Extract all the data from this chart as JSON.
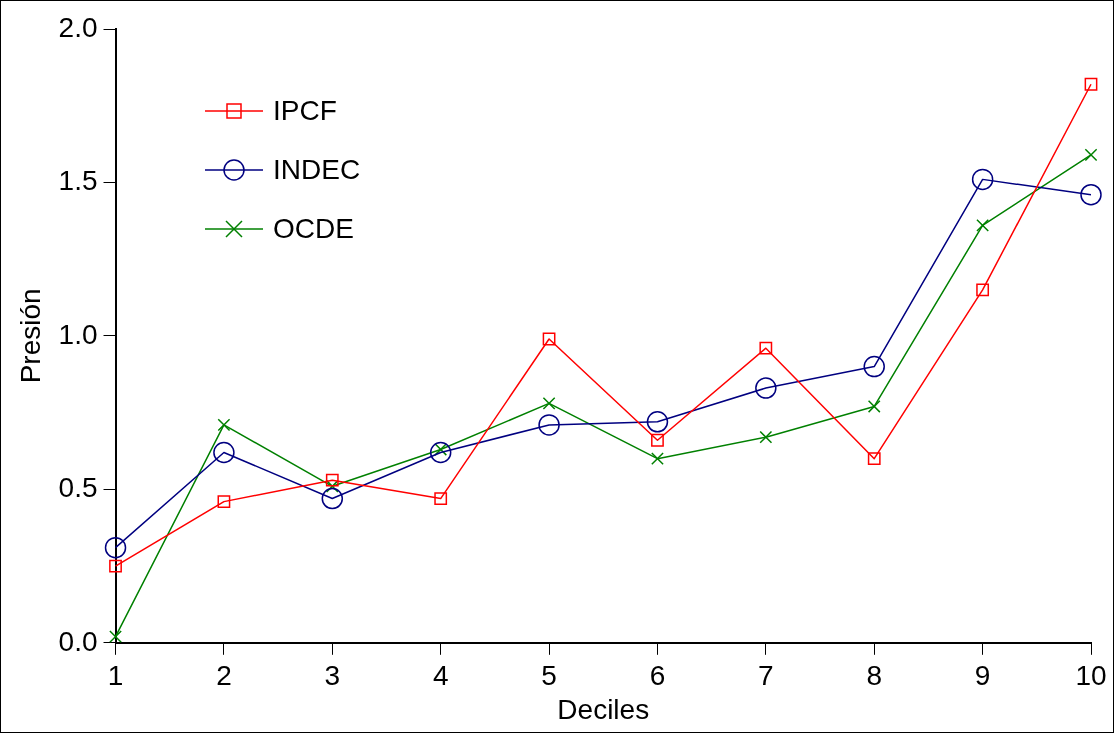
{
  "chart_data": {
    "type": "line",
    "xlabel": "Deciles",
    "ylabel": "Presión",
    "categories": [
      "1",
      "2",
      "3",
      "4",
      "5",
      "6",
      "7",
      "8",
      "9",
      "10"
    ],
    "series": [
      {
        "name": "IPCF",
        "color": "#ff0000",
        "marker": "square",
        "values": [
          0.25,
          0.46,
          0.53,
          0.47,
          0.99,
          0.66,
          0.96,
          0.6,
          1.15,
          1.82
        ]
      },
      {
        "name": "INDEC",
        "color": "#000080",
        "marker": "circle",
        "values": [
          0.31,
          0.62,
          0.47,
          0.62,
          0.71,
          0.72,
          0.83,
          0.9,
          1.51,
          1.46
        ]
      },
      {
        "name": "OCDE",
        "color": "#008000",
        "marker": "cross",
        "values": [
          0.02,
          0.71,
          0.51,
          0.63,
          0.78,
          0.6,
          0.67,
          0.77,
          1.36,
          1.59
        ]
      }
    ],
    "ylim": [
      0,
      2
    ],
    "yticks": [
      {
        "value": 0,
        "label": "0.0"
      },
      {
        "value": 0.5,
        "label": "0.5"
      },
      {
        "value": 1,
        "label": "1.0"
      },
      {
        "value": 1.5,
        "label": "1.5"
      },
      {
        "value": 2,
        "label": "2.0"
      }
    ],
    "grid": false,
    "legend": "top left",
    "line_style": "solid"
  }
}
